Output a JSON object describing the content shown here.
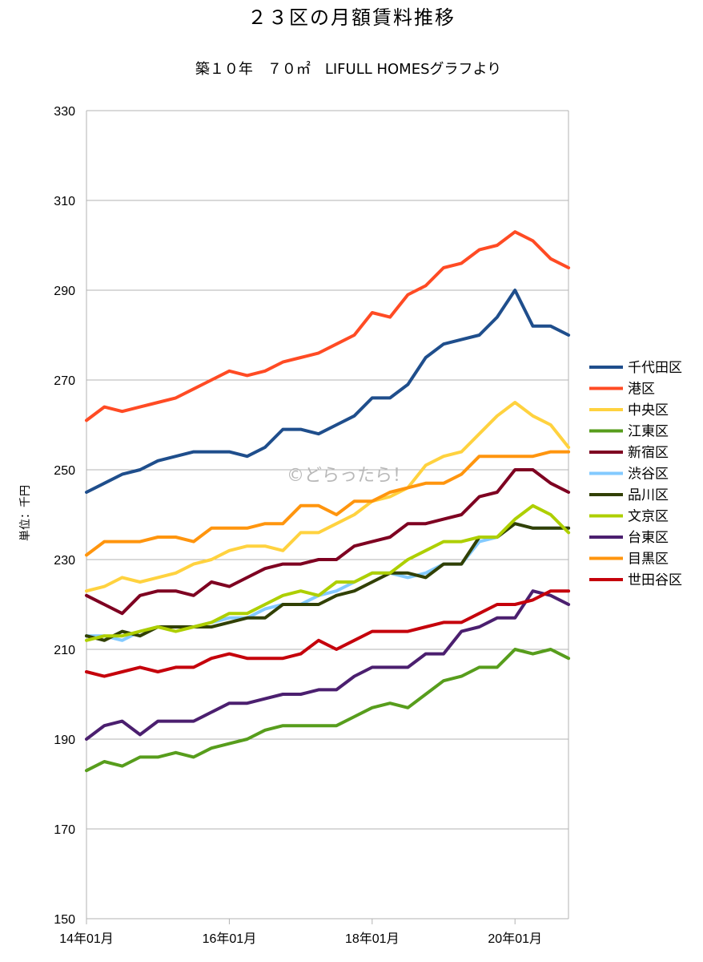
{
  "chart_data": {
    "type": "line",
    "title": "２３区の月額賃料推移",
    "subtitle": "築１０年　７０㎡　LIFULL HOMESグラフより",
    "ylabel": "単位：千円",
    "xlabel": "",
    "watermark": "©どらったら！",
    "ylim": [
      150,
      330
    ],
    "yticks": [
      150,
      170,
      190,
      210,
      230,
      250,
      270,
      290,
      310,
      330
    ],
    "xticks": [
      {
        "index": 0,
        "label": "14年01月"
      },
      {
        "index": 8,
        "label": "16年01月"
      },
      {
        "index": 16,
        "label": "18年01月"
      },
      {
        "index": 24,
        "label": "20年01月"
      }
    ],
    "n_points": 28,
    "grid": true,
    "legend_position": "right",
    "series": [
      {
        "name": "千代田区",
        "color": "#1f4e8c",
        "values": [
          245,
          247,
          249,
          250,
          252,
          253,
          254,
          254,
          254,
          253,
          255,
          259,
          259,
          258,
          260,
          262,
          266,
          266,
          269,
          275,
          278,
          279,
          280,
          284,
          290,
          282,
          282,
          280
        ]
      },
      {
        "name": "港区",
        "color": "#ff4b24",
        "values": [
          261,
          264,
          263,
          264,
          265,
          266,
          268,
          270,
          272,
          271,
          272,
          274,
          275,
          276,
          278,
          280,
          285,
          284,
          289,
          291,
          295,
          296,
          299,
          300,
          303,
          301,
          297,
          295
        ]
      },
      {
        "name": "中央区",
        "color": "#ffd23f",
        "values": [
          223,
          224,
          226,
          225,
          226,
          227,
          229,
          230,
          232,
          233,
          233,
          232,
          236,
          236,
          238,
          240,
          243,
          244,
          246,
          251,
          253,
          254,
          258,
          262,
          265,
          262,
          260,
          255
        ]
      },
      {
        "name": "江東区",
        "color": "#579d1c",
        "values": [
          183,
          185,
          184,
          186,
          186,
          187,
          186,
          188,
          189,
          190,
          192,
          193,
          193,
          193,
          193,
          195,
          197,
          198,
          197,
          200,
          203,
          204,
          206,
          206,
          210,
          209,
          210,
          208
        ]
      },
      {
        "name": "新宿区",
        "color": "#7e0021",
        "values": [
          222,
          220,
          218,
          222,
          223,
          223,
          222,
          225,
          224,
          226,
          228,
          229,
          229,
          230,
          230,
          233,
          234,
          235,
          238,
          238,
          239,
          240,
          244,
          245,
          250,
          250,
          247,
          245
        ]
      },
      {
        "name": "渋谷区",
        "color": "#83caff",
        "values": [
          213,
          213,
          212,
          214,
          215,
          215,
          215,
          216,
          217,
          217,
          219,
          220,
          220,
          222,
          223,
          225,
          227,
          227,
          226,
          227,
          229,
          229,
          234,
          235,
          238,
          237,
          237,
          237
        ]
      },
      {
        "name": "品川区",
        "color": "#314004",
        "values": [
          213,
          212,
          214,
          213,
          215,
          215,
          215,
          215,
          216,
          217,
          217,
          220,
          220,
          220,
          222,
          223,
          225,
          227,
          227,
          226,
          229,
          229,
          235,
          235,
          238,
          237,
          237,
          237
        ]
      },
      {
        "name": "文京区",
        "color": "#aecf00",
        "values": [
          212,
          213,
          213,
          214,
          215,
          214,
          215,
          216,
          218,
          218,
          220,
          222,
          223,
          222,
          225,
          225,
          227,
          227,
          230,
          232,
          234,
          234,
          235,
          235,
          239,
          242,
          240,
          236
        ]
      },
      {
        "name": "台東区",
        "color": "#4b1f6f",
        "values": [
          190,
          193,
          194,
          191,
          194,
          194,
          194,
          196,
          198,
          198,
          199,
          200,
          200,
          201,
          201,
          204,
          206,
          206,
          206,
          209,
          209,
          214,
          215,
          217,
          217,
          223,
          222,
          220
        ]
      },
      {
        "name": "目黒区",
        "color": "#ff950e",
        "values": [
          231,
          234,
          234,
          234,
          235,
          235,
          234,
          237,
          237,
          237,
          238,
          238,
          242,
          242,
          240,
          243,
          243,
          245,
          246,
          247,
          247,
          249,
          253,
          253,
          253,
          253,
          254,
          254
        ]
      },
      {
        "name": "世田谷区",
        "color": "#c5000b",
        "values": [
          205,
          204,
          205,
          206,
          205,
          206,
          206,
          208,
          209,
          208,
          208,
          208,
          209,
          212,
          210,
          212,
          214,
          214,
          214,
          215,
          216,
          216,
          218,
          220,
          220,
          221,
          223,
          223
        ]
      }
    ]
  }
}
